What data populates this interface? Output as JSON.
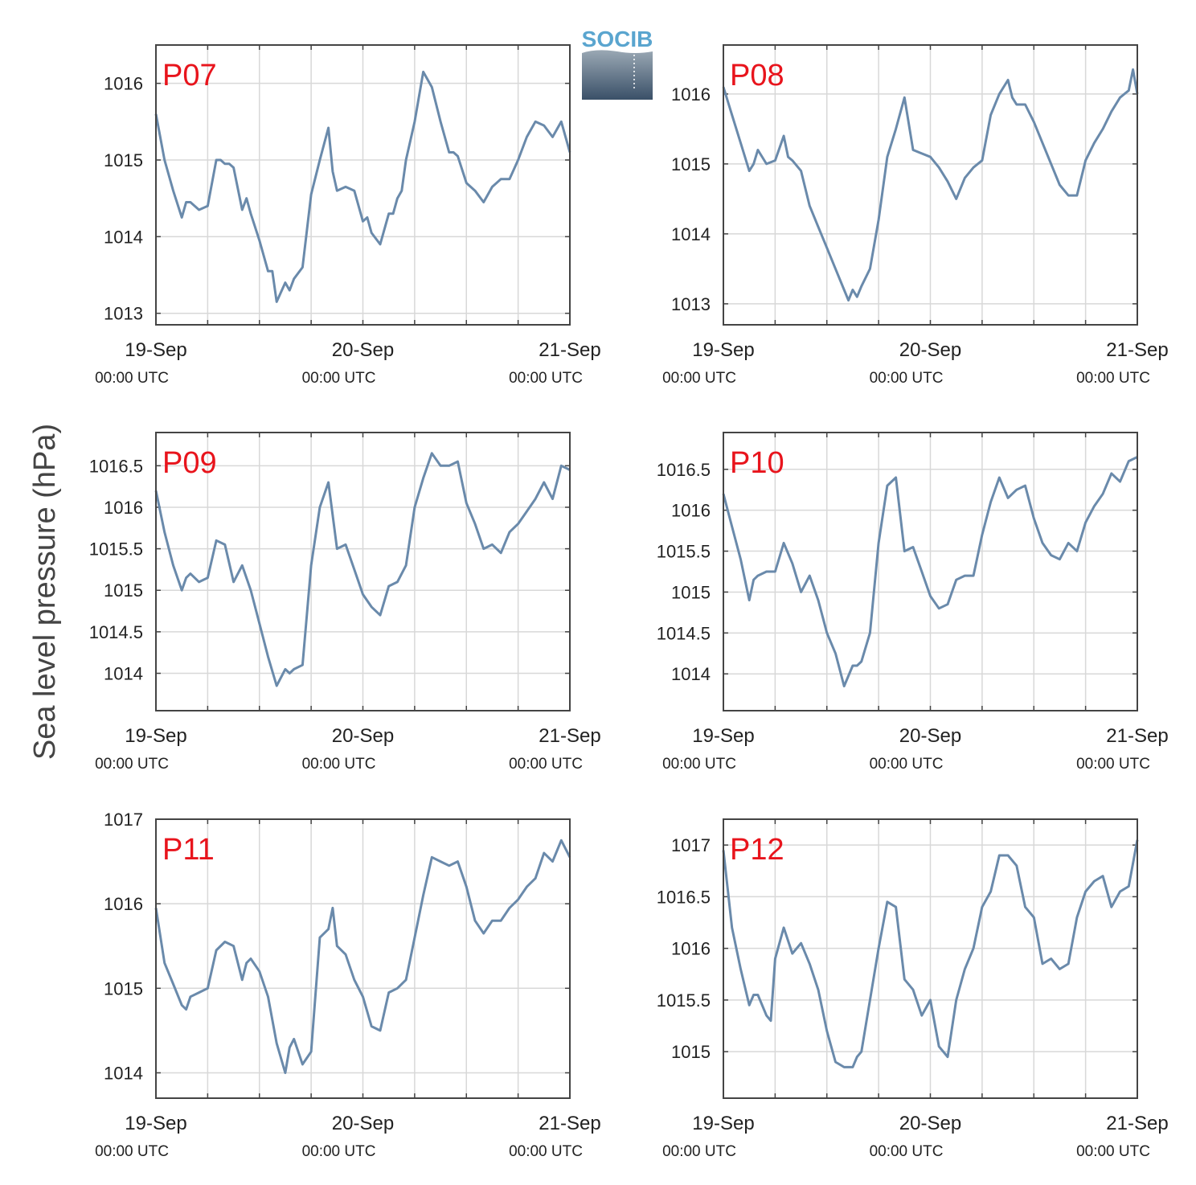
{
  "figure": {
    "ylabel": "Sea level pressure (hPa)",
    "logo_text": "SOCIB",
    "colors": {
      "series": "#6a8aab",
      "panel_label": "#e8141c",
      "grid": "#d8d8d8",
      "axis": "#444444"
    }
  },
  "chart_data": [
    {
      "type": "line",
      "title": "P07",
      "xlabel": "",
      "ylabel": "Sea level pressure (hPa)",
      "xlim": [
        0,
        48
      ],
      "ylim": [
        1012.85,
        1016.5
      ],
      "x_ticks": [
        0,
        24,
        48
      ],
      "x_tick_labels": [
        [
          "19-Sep",
          "00:00 UTC"
        ],
        [
          "20-Sep",
          "00:00 UTC"
        ],
        [
          "21-Sep",
          "00:00 UTC"
        ]
      ],
      "y_ticks": [
        1013,
        1014,
        1015,
        1016
      ],
      "y_tick_labels": [
        "1013",
        "1014",
        "1015",
        "1016"
      ],
      "grid": true,
      "series": [
        {
          "x": [
            0,
            1,
            2,
            3,
            3.5,
            4,
            5,
            6,
            7,
            7.5,
            8,
            8.5,
            9,
            10,
            10.5,
            11,
            12,
            13,
            13.5,
            14,
            15,
            15.5,
            16,
            17,
            18,
            19,
            20,
            20.5,
            21,
            22,
            23,
            24,
            24.5,
            25,
            26,
            27,
            27.5,
            28,
            28.5,
            29,
            30,
            31,
            32,
            33,
            34,
            34.5,
            35,
            36,
            37,
            38,
            39,
            40,
            41,
            42,
            43,
            44,
            45,
            46,
            47,
            48
          ],
          "y": [
            1015.6,
            1015.0,
            1014.6,
            1014.25,
            1014.45,
            1014.45,
            1014.35,
            1014.4,
            1015.0,
            1015.0,
            1014.95,
            1014.95,
            1014.9,
            1014.35,
            1014.5,
            1014.3,
            1013.95,
            1013.55,
            1013.55,
            1013.15,
            1013.4,
            1013.3,
            1013.45,
            1013.6,
            1014.55,
            1015.0,
            1015.42,
            1014.85,
            1014.6,
            1014.65,
            1014.6,
            1014.2,
            1014.25,
            1014.05,
            1013.9,
            1014.3,
            1014.3,
            1014.5,
            1014.6,
            1015.0,
            1015.5,
            1016.15,
            1015.95,
            1015.5,
            1015.1,
            1015.1,
            1015.05,
            1014.7,
            1014.6,
            1014.45,
            1014.65,
            1014.75,
            1014.75,
            1015.0,
            1015.3,
            1015.5,
            1015.45,
            1015.3,
            1015.5,
            1015.1
          ]
        }
      ]
    },
    {
      "type": "line",
      "title": "P08",
      "xlabel": "",
      "ylabel": "Sea level pressure (hPa)",
      "xlim": [
        0,
        48
      ],
      "ylim": [
        1012.7,
        1016.7
      ],
      "x_ticks": [
        0,
        24,
        48
      ],
      "x_tick_labels": [
        [
          "19-Sep",
          "00:00 UTC"
        ],
        [
          "20-Sep",
          "00:00 UTC"
        ],
        [
          "21-Sep",
          "00:00 UTC"
        ]
      ],
      "y_ticks": [
        1013,
        1014,
        1015,
        1016
      ],
      "y_tick_labels": [
        "1013",
        "1014",
        "1015",
        "1016"
      ],
      "grid": true,
      "series": [
        {
          "x": [
            0,
            1,
            2,
            3,
            3.5,
            4,
            5,
            6,
            7,
            7.5,
            8,
            9,
            10,
            11,
            12,
            13,
            14,
            14.5,
            15,
            15.5,
            16,
            17,
            18,
            19,
            20,
            21,
            22,
            23,
            24,
            25,
            26,
            27,
            28,
            29,
            30,
            31,
            32,
            33,
            33.5,
            34,
            35,
            36,
            37,
            38,
            39,
            40,
            41,
            42,
            43,
            44,
            45,
            46,
            47,
            47.5,
            48
          ],
          "y": [
            1016.1,
            1015.7,
            1015.3,
            1014.9,
            1015.0,
            1015.2,
            1015.0,
            1015.05,
            1015.4,
            1015.1,
            1015.05,
            1014.9,
            1014.4,
            1014.1,
            1013.8,
            1013.5,
            1013.2,
            1013.05,
            1013.2,
            1013.1,
            1013.25,
            1013.5,
            1014.2,
            1015.1,
            1015.5,
            1015.95,
            1015.2,
            1015.15,
            1015.1,
            1014.95,
            1014.75,
            1014.5,
            1014.8,
            1014.95,
            1015.05,
            1015.7,
            1016.0,
            1016.2,
            1015.95,
            1015.85,
            1015.85,
            1015.6,
            1015.3,
            1015.0,
            1014.7,
            1014.55,
            1014.55,
            1015.05,
            1015.3,
            1015.5,
            1015.75,
            1015.95,
            1016.05,
            1016.35,
            1016.0
          ]
        }
      ]
    },
    {
      "type": "line",
      "title": "P09",
      "xlabel": "",
      "ylabel": "Sea level pressure (hPa)",
      "xlim": [
        0,
        48
      ],
      "ylim": [
        1013.55,
        1016.9
      ],
      "x_ticks": [
        0,
        24,
        48
      ],
      "x_tick_labels": [
        [
          "19-Sep",
          "00:00 UTC"
        ],
        [
          "20-Sep",
          "00:00 UTC"
        ],
        [
          "21-Sep",
          "00:00 UTC"
        ]
      ],
      "y_ticks": [
        1014,
        1014.5,
        1015,
        1015.5,
        1016,
        1016.5
      ],
      "y_tick_labels": [
        "1014",
        "1014.5",
        "1015",
        "1015.5",
        "1016",
        "1016.5"
      ],
      "grid": true,
      "series": [
        {
          "x": [
            0,
            1,
            2,
            3,
            3.5,
            4,
            5,
            6,
            7,
            8,
            9,
            10,
            11,
            12,
            13,
            14,
            15,
            15.5,
            16,
            17,
            18,
            19,
            20,
            21,
            22,
            23,
            24,
            25,
            26,
            27,
            28,
            29,
            30,
            31,
            32,
            33,
            34,
            35,
            36,
            37,
            38,
            39,
            40,
            41,
            42,
            43,
            44,
            45,
            46,
            47,
            48
          ],
          "y": [
            1016.2,
            1015.7,
            1015.3,
            1015.0,
            1015.15,
            1015.2,
            1015.1,
            1015.15,
            1015.6,
            1015.55,
            1015.1,
            1015.3,
            1015.0,
            1014.6,
            1014.2,
            1013.85,
            1014.05,
            1014.0,
            1014.05,
            1014.1,
            1015.3,
            1016.0,
            1016.3,
            1015.5,
            1015.55,
            1015.25,
            1014.95,
            1014.8,
            1014.7,
            1015.05,
            1015.1,
            1015.3,
            1016.0,
            1016.35,
            1016.65,
            1016.5,
            1016.5,
            1016.55,
            1016.05,
            1015.8,
            1015.5,
            1015.55,
            1015.45,
            1015.7,
            1015.8,
            1015.95,
            1016.1,
            1016.3,
            1016.1,
            1016.5,
            1016.45
          ]
        }
      ]
    },
    {
      "type": "line",
      "title": "P10",
      "xlabel": "",
      "ylabel": "Sea level pressure (hPa)",
      "xlim": [
        0,
        48
      ],
      "ylim": [
        1013.55,
        1016.95
      ],
      "x_ticks": [
        0,
        24,
        48
      ],
      "x_tick_labels": [
        [
          "19-Sep",
          "00:00 UTC"
        ],
        [
          "20-Sep",
          "00:00 UTC"
        ],
        [
          "21-Sep",
          "00:00 UTC"
        ]
      ],
      "y_ticks": [
        1014,
        1014.5,
        1015,
        1015.5,
        1016,
        1016.5
      ],
      "y_tick_labels": [
        "1014",
        "1014.5",
        "1015",
        "1015.5",
        "1016",
        "1016.5"
      ],
      "grid": true,
      "series": [
        {
          "x": [
            0,
            1,
            2,
            3,
            3.5,
            4,
            5,
            6,
            7,
            8,
            9,
            10,
            11,
            12,
            13,
            14,
            15,
            15.5,
            16,
            17,
            18,
            19,
            20,
            21,
            22,
            23,
            24,
            25,
            26,
            27,
            28,
            29,
            30,
            31,
            32,
            33,
            34,
            35,
            36,
            37,
            38,
            39,
            40,
            41,
            42,
            43,
            44,
            45,
            46,
            47,
            48
          ],
          "y": [
            1016.2,
            1015.8,
            1015.4,
            1014.9,
            1015.15,
            1015.2,
            1015.25,
            1015.25,
            1015.6,
            1015.35,
            1015.0,
            1015.2,
            1014.9,
            1014.5,
            1014.25,
            1013.85,
            1014.1,
            1014.1,
            1014.15,
            1014.5,
            1015.6,
            1016.3,
            1016.4,
            1015.5,
            1015.55,
            1015.25,
            1014.95,
            1014.8,
            1014.85,
            1015.15,
            1015.2,
            1015.2,
            1015.7,
            1016.1,
            1016.4,
            1016.15,
            1016.25,
            1016.3,
            1015.9,
            1015.6,
            1015.45,
            1015.4,
            1015.6,
            1015.5,
            1015.85,
            1016.05,
            1016.2,
            1016.45,
            1016.35,
            1016.6,
            1016.65
          ]
        }
      ]
    },
    {
      "type": "line",
      "title": "P11",
      "xlabel": "",
      "ylabel": "Sea level pressure (hPa)",
      "xlim": [
        0,
        48
      ],
      "ylim": [
        1013.7,
        1017.0
      ],
      "x_ticks": [
        0,
        24,
        48
      ],
      "x_tick_labels": [
        [
          "19-Sep",
          "00:00 UTC"
        ],
        [
          "20-Sep",
          "00:00 UTC"
        ],
        [
          "21-Sep",
          "00:00 UTC"
        ]
      ],
      "y_ticks": [
        1014,
        1015,
        1016,
        1017
      ],
      "y_tick_labels": [
        "1014",
        "1015",
        "1016",
        "1017"
      ],
      "grid": true,
      "series": [
        {
          "x": [
            0,
            1,
            2,
            3,
            3.5,
            4,
            5,
            6,
            7,
            8,
            9,
            10,
            10.5,
            11,
            12,
            13,
            14,
            15,
            15.5,
            16,
            17,
            18,
            19,
            20,
            20.5,
            21,
            22,
            23,
            24,
            25,
            26,
            27,
            28,
            29,
            30,
            31,
            32,
            33,
            34,
            35,
            36,
            37,
            38,
            39,
            40,
            41,
            42,
            43,
            44,
            45,
            46,
            47,
            48
          ],
          "y": [
            1015.95,
            1015.3,
            1015.05,
            1014.8,
            1014.75,
            1014.9,
            1014.95,
            1015.0,
            1015.45,
            1015.55,
            1015.5,
            1015.1,
            1015.3,
            1015.35,
            1015.2,
            1014.9,
            1014.35,
            1014.0,
            1014.3,
            1014.4,
            1014.1,
            1014.25,
            1015.6,
            1015.7,
            1015.95,
            1015.5,
            1015.4,
            1015.1,
            1014.9,
            1014.55,
            1014.5,
            1014.95,
            1015.0,
            1015.1,
            1015.6,
            1016.1,
            1016.55,
            1016.5,
            1016.45,
            1016.5,
            1016.2,
            1015.8,
            1015.65,
            1015.8,
            1015.8,
            1015.95,
            1016.05,
            1016.2,
            1016.3,
            1016.6,
            1016.5,
            1016.75,
            1016.55
          ]
        }
      ]
    },
    {
      "type": "line",
      "title": "P12",
      "xlabel": "",
      "ylabel": "Sea level pressure (hPa)",
      "xlim": [
        0,
        48
      ],
      "ylim": [
        1014.55,
        1017.25
      ],
      "x_ticks": [
        0,
        24,
        48
      ],
      "x_tick_labels": [
        [
          "19-Sep",
          "00:00 UTC"
        ],
        [
          "20-Sep",
          "00:00 UTC"
        ],
        [
          "21-Sep",
          "00:00 UTC"
        ]
      ],
      "y_ticks": [
        1015,
        1015.5,
        1016,
        1016.5,
        1017
      ],
      "y_tick_labels": [
        "1015",
        "1015.5",
        "1016",
        "1016.5",
        "1017"
      ],
      "grid": true,
      "series": [
        {
          "x": [
            0,
            1,
            2,
            3,
            3.5,
            4,
            5,
            5.5,
            6,
            7,
            8,
            9,
            10,
            11,
            12,
            13,
            14,
            15,
            15.5,
            16,
            17,
            18,
            19,
            20,
            21,
            22,
            23,
            24,
            25,
            26,
            27,
            28,
            29,
            30,
            31,
            32,
            33,
            34,
            35,
            36,
            37,
            38,
            39,
            40,
            41,
            42,
            43,
            44,
            45,
            46,
            47,
            48
          ],
          "y": [
            1016.95,
            1016.2,
            1015.8,
            1015.45,
            1015.55,
            1015.55,
            1015.35,
            1015.3,
            1015.9,
            1016.2,
            1015.95,
            1016.05,
            1015.85,
            1015.6,
            1015.2,
            1014.9,
            1014.85,
            1014.85,
            1014.95,
            1015.0,
            1015.5,
            1016.0,
            1016.45,
            1016.4,
            1015.7,
            1015.6,
            1015.35,
            1015.5,
            1015.05,
            1014.95,
            1015.5,
            1015.8,
            1016.0,
            1016.4,
            1016.55,
            1016.9,
            1016.9,
            1016.8,
            1016.4,
            1016.3,
            1015.85,
            1015.9,
            1015.8,
            1015.85,
            1016.3,
            1016.55,
            1016.65,
            1016.7,
            1016.4,
            1016.55,
            1016.6,
            1017.05
          ]
        }
      ]
    }
  ]
}
